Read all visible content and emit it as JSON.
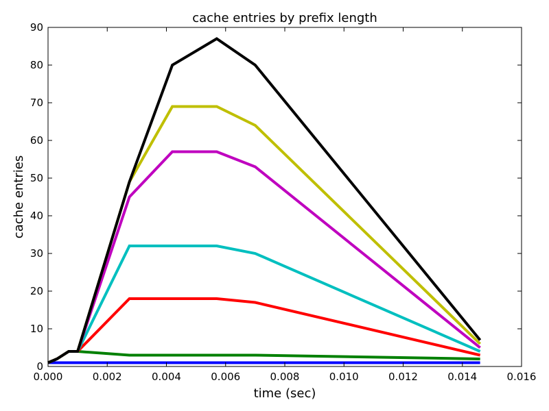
{
  "chart_data": {
    "type": "line",
    "title": "cache entries by prefix length",
    "xlabel": "time (sec)",
    "ylabel": "cache entries",
    "xlim": [
      0,
      0.016
    ],
    "ylim": [
      0,
      90
    ],
    "xticks": [
      "0.000",
      "0.002",
      "0.004",
      "0.006",
      "0.008",
      "0.010",
      "0.012",
      "0.014",
      "0.016"
    ],
    "yticks": [
      "0",
      "10",
      "20",
      "30",
      "40",
      "50",
      "60",
      "70",
      "80",
      "90"
    ],
    "grid": false,
    "series": [
      {
        "color": "#0000ff",
        "points": [
          [
            0.0,
            1
          ],
          [
            0.0003,
            1
          ],
          [
            0.0007,
            1
          ],
          [
            0.001,
            1
          ],
          [
            0.00275,
            1
          ],
          [
            0.0042,
            1
          ],
          [
            0.0057,
            1
          ],
          [
            0.007,
            1
          ],
          [
            0.0146,
            1
          ]
        ]
      },
      {
        "color": "#008000",
        "points": [
          [
            0.0,
            1
          ],
          [
            0.0003,
            2
          ],
          [
            0.0007,
            4
          ],
          [
            0.001,
            4
          ],
          [
            0.00275,
            3
          ],
          [
            0.0042,
            3
          ],
          [
            0.0057,
            3
          ],
          [
            0.007,
            3
          ],
          [
            0.0146,
            2
          ]
        ]
      },
      {
        "color": "#ff0000",
        "points": [
          [
            0.0,
            1
          ],
          [
            0.0003,
            2
          ],
          [
            0.0007,
            4
          ],
          [
            0.001,
            4
          ],
          [
            0.00275,
            18
          ],
          [
            0.0042,
            18
          ],
          [
            0.0057,
            18
          ],
          [
            0.007,
            17
          ],
          [
            0.0146,
            3
          ]
        ]
      },
      {
        "color": "#00bfbf",
        "points": [
          [
            0.0,
            1
          ],
          [
            0.0003,
            2
          ],
          [
            0.0007,
            4
          ],
          [
            0.001,
            4
          ],
          [
            0.00275,
            32
          ],
          [
            0.0042,
            32
          ],
          [
            0.0057,
            32
          ],
          [
            0.007,
            30
          ],
          [
            0.0146,
            4
          ]
        ]
      },
      {
        "color": "#bf00bf",
        "points": [
          [
            0.0,
            1
          ],
          [
            0.0003,
            2
          ],
          [
            0.0007,
            4
          ],
          [
            0.001,
            4
          ],
          [
            0.00275,
            45
          ],
          [
            0.0042,
            57
          ],
          [
            0.0057,
            57
          ],
          [
            0.007,
            53
          ],
          [
            0.0146,
            5
          ]
        ]
      },
      {
        "color": "#bfbf00",
        "points": [
          [
            0.0,
            1
          ],
          [
            0.0003,
            2
          ],
          [
            0.0007,
            4
          ],
          [
            0.001,
            4
          ],
          [
            0.00275,
            49
          ],
          [
            0.0042,
            69
          ],
          [
            0.0057,
            69
          ],
          [
            0.007,
            64
          ],
          [
            0.0146,
            6
          ]
        ]
      },
      {
        "color": "#000000",
        "points": [
          [
            0.0,
            1
          ],
          [
            0.0003,
            2
          ],
          [
            0.0007,
            4
          ],
          [
            0.001,
            4
          ],
          [
            0.00275,
            49
          ],
          [
            0.0042,
            80
          ],
          [
            0.0057,
            87
          ],
          [
            0.007,
            80
          ],
          [
            0.0146,
            7
          ]
        ]
      }
    ]
  }
}
